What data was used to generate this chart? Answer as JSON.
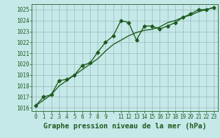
{
  "title": "Graphe pression niveau de la mer (hPa)",
  "background_color": "#c5e8e8",
  "grid_color": "#9fbfbf",
  "line_color": "#1e5c1e",
  "x_hours": [
    0,
    1,
    2,
    3,
    4,
    5,
    6,
    7,
    8,
    9,
    10,
    11,
    12,
    13,
    14,
    15,
    16,
    17,
    18,
    19,
    20,
    21,
    22,
    23
  ],
  "series1": [
    1016.2,
    1017.0,
    1017.2,
    1018.5,
    1018.6,
    1019.0,
    1019.9,
    1020.1,
    1021.1,
    1022.0,
    1022.6,
    1024.0,
    1023.8,
    1022.2,
    1023.5,
    1023.5,
    1023.2,
    1023.5,
    1023.8,
    1024.3,
    1024.6,
    1025.0,
    1025.0,
    1025.2
  ],
  "series2": [
    1016.2,
    1016.7,
    1017.2,
    1018.0,
    1018.5,
    1019.0,
    1019.5,
    1020.0,
    1020.5,
    1021.2,
    1021.8,
    1022.2,
    1022.6,
    1022.9,
    1023.1,
    1023.2,
    1023.4,
    1023.8,
    1024.0,
    1024.3,
    1024.5,
    1024.8,
    1025.0,
    1025.2
  ],
  "ylim": [
    1015.7,
    1025.5
  ],
  "yticks": [
    1016,
    1017,
    1018,
    1019,
    1020,
    1021,
    1022,
    1023,
    1024,
    1025
  ],
  "xlim": [
    -0.5,
    23.5
  ],
  "xtick_labels": [
    "0",
    "1",
    "2",
    "3",
    "4",
    "5",
    "6",
    "7",
    "8",
    "9",
    "",
    "11",
    "12",
    "13",
    "14",
    "15",
    "16",
    "17",
    "18",
    "19",
    "20",
    "21",
    "22",
    "23"
  ],
  "title_fontsize": 7.5,
  "tick_fontsize": 5.5,
  "marker": "D",
  "markersize": 2.5,
  "linewidth": 1.0
}
